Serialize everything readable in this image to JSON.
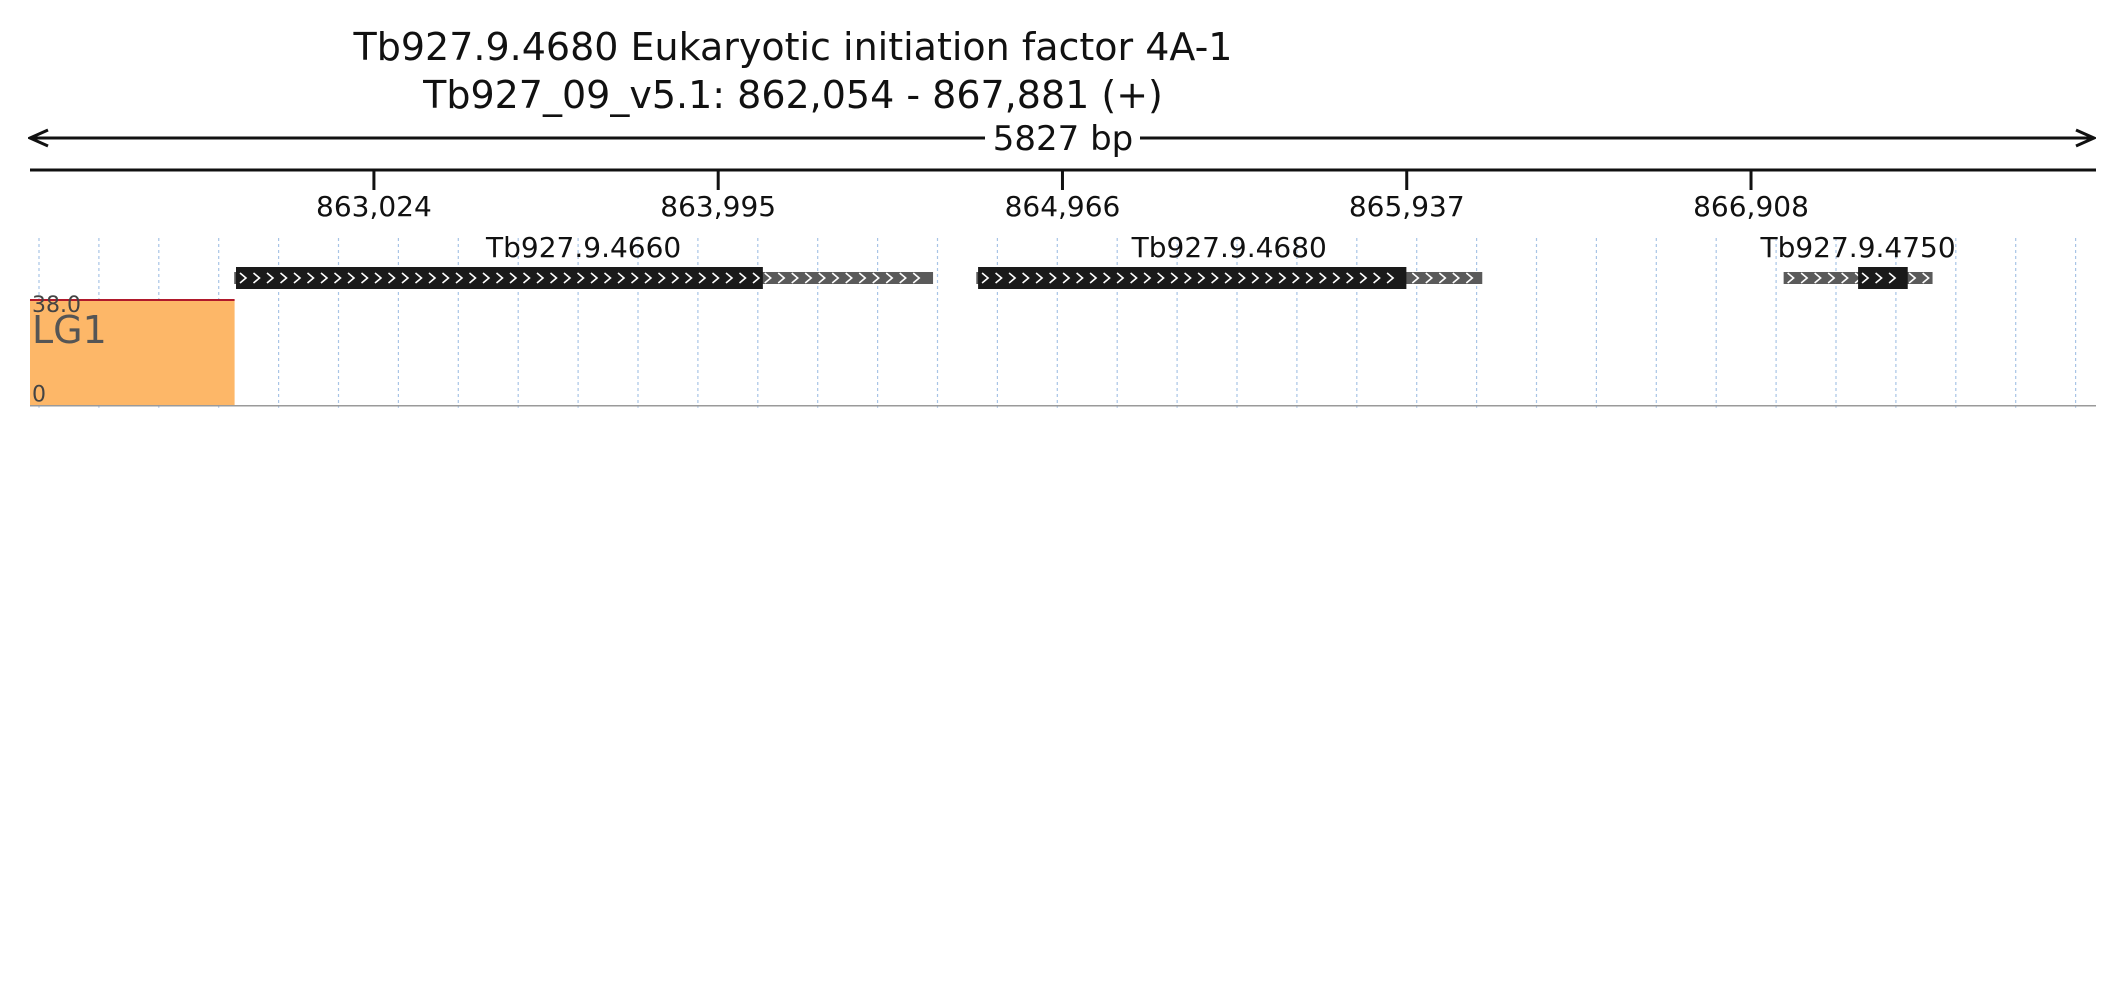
{
  "header": {
    "title": "Tb927.9.4680  Eukaryotic initiation factor 4A-1",
    "locus": "Tb927_09_v5.1: 862,054 - 867,881 (+)",
    "span_label": "5827 bp"
  },
  "region": {
    "start": 862054,
    "end": 867881
  },
  "ruler": {
    "ticks": [
      {
        "pos": 863024,
        "label": "863,024"
      },
      {
        "pos": 863995,
        "label": "863,995"
      },
      {
        "pos": 864966,
        "label": "864,966"
      },
      {
        "pos": 865937,
        "label": "865,937"
      },
      {
        "pos": 866908,
        "label": "866,908"
      }
    ]
  },
  "genes": [
    {
      "name": "Tb927.9.4660",
      "start": 862630,
      "end": 864601,
      "cds_start": 862635,
      "cds_end": 864121
    },
    {
      "name": "Tb927.9.4680",
      "start": 864723,
      "end": 866150,
      "cds_start": 864728,
      "cds_end": 865936
    },
    {
      "name": "Tb927.9.4750",
      "start": 867000,
      "end": 867420,
      "cds_start": 867210,
      "cds_end": 867350
    }
  ],
  "colors": {
    "LG1": "#fdb768",
    "G1": "#c497c9",
    "S": "#86cc86",
    "G2M": "#84b9e3",
    "GG2M": "#f59fc6",
    "Lib": "#e3d76c",
    "gene_cds": "#1a1a1a",
    "gene_utr": "#5a5a5a",
    "grid": "#a8c4e6",
    "clip": "#b0192b"
  },
  "tracks": [
    {
      "name": "LG1",
      "max_label": "38.0",
      "min_label": "0",
      "max": 38,
      "segments": [
        {
          "start": 862054,
          "end": 862631,
          "values": [
            38,
            38,
            38,
            38,
            38,
            38,
            38,
            38,
            38,
            38,
            38,
            38,
            38,
            38,
            38,
            38,
            38,
            38,
            38,
            38,
            38,
            38,
            38,
            38,
            38,
            38,
            38,
            38,
            38,
            38,
            38,
            38,
            38,
            38,
            38,
            38,
            38,
            38,
            38,
            38,
            38,
            38,
            38,
            38,
            38,
            38,
            38,
            38,
            38,
            38,
            38,
            38,
            38,
            38,
            38,
            38,
            38,
            38,
            38,
            38,
            38,
            38,
            38,
            38,
            38,
            38,
            38,
            38,
            38,
            38,
            38,
            38,
            38,
            38,
            38,
            38,
            38,
            38,
            38,
            38,
            38,
            38,
            38,
            38,
            38,
            38,
            38,
            38,
            38,
            38,
            38,
            38,
            38,
            38,
            38,
            38,
            38,
            38,
            38,
            38,
            38,
            38,
            38,
            38,
            38,
            38,
            38,
            38,
            38,
            38,
            38,
            38,
            38,
            38,
            38,
            38,
            38,
            38,
            38,
            38,
            38,
            38,
            38,
            38,
            38,
            38,
            38,
            38,
            38,
            38,
            38,
            38,
            38,
            38,
            38,
            38,
            38,
            38,
            38,
            38,
            38,
            38,
            38,
            38,
            38,
            38,
            38,
            38,
            38,
            38,
            38,
            38,
            38,
            38,
            38,
            38,
            38,
            38,
            38,
            38,
            38,
            38,
            38,
            38,
            38,
            38,
            38,
            38,
            38,
            38,
            38,
            38,
            38,
            38,
            38,
            38,
            38,
            38,
            38,
            38,
            38,
            38,
            38,
            38,
            38,
            38,
            38,
            38,
            38,
            38,
            38,
            38,
            38,
            38,
            38,
            38,
            38,
            38,
            38,
            38,
            38,
            38,
            38,
            38,
            38,
            38,
            38,
            38,
            38,
            38,
            38,
            38,
            38,
            38,
            38,
            38,
            38,
            38,
            38,
            38,
            38,
            38,
            38,
            38,
            38,
            38,
            38,
            38,
            38,
            38,
            38,
            38,
            38,
            38,
            38,
            38,
            38,
            38,
            38,
            38,
            38,
            38,
            38,
            38,
            38,
            38,
            38,
            38,
            38,
            38,
            38,
            38,
            38,
            38,
            38,
            38,
            38,
            38,
            38,
            38,
            38,
            38,
            38,
            38,
            38,
            38,
            38,
            38,
            38,
            38,
            38,
            38,
            38,
            38,
            38,
            38,
            38,
            38,
            38,
            38,
            38,
            38,
            38,
            38,
            38,
            38,
            38,
            38,
            38,
            38,
            38,
            38,
            38,
            38,
            38,
            38,
            38,
            38,
            38,
            38,
            38,
            38,
            38,
            38,
            38,
            38,
            38,
            38,
            38,
            38,
            38,
            38,
            38,
            38,
            38,
            38,
            38,
            38,
            38,
            38,
            38,
            38,
            38,
            38,
            38,
            38,
            38,
            38,
            38,
            38,
            38,
            38,
            38,
            38,
            38,
            38,
            38,
            38,
            38,
            38,
            38,
            38,
            38,
            38,
            38,
            38,
            38,
            38,
            38,
            38,
            38,
            38,
            38,
            38,
            38,
            38,
            38,
            38,
            38,
            38,
            38,
            38,
            38,
            38,
            38,
            38,
            38,
            38,
            38,
            38,
            38,
            38,
            38,
            38,
            38,
            38,
            38,
            38,
            38,
            38,
            38,
            38,
            38,
            38,
            38,
            38,
            38,
            38,
            38,
            38,
            38,
            38,
            38,
            38,
            38,
            38,
            38,
            38,
            38,
            38,
            38,
            38,
            38,
            38,
            38,
            38,
            38,
            38,
            38,
            38,
            38,
            38,
            38,
            38,
            38,
            38,
            38,
            38,
            38,
            38,
            38,
            38,
            38,
            38,
            38,
            38,
            38,
            38,
            38,
            38,
            38,
            38,
            38,
            38,
            38,
            38,
            38,
            38,
            38,
            38,
            38,
            38,
            38,
            38,
            38,
            38,
            38,
            38,
            38,
            38,
            38,
            38,
            38,
            38,
            38,
            38,
            38,
            38,
            38,
            38,
            38,
            38,
            38,
            38,
            38,
            38,
            38,
            38,
            38,
            38,
            38,
            38,
            38,
            38,
            38,
            38,
            38,
            38,
            38,
            38,
            38,
            38,
            38,
            38,
            38,
            38,
            38,
            38,
            38,
            38,
            38,
            38,
            38,
            38,
            38,
            38,
            38,
            38,
            38,
            38,
            38,
            38,
            38,
            38,
            38,
            38,
            38,
            38,
            38,
            38,
            38,
            38,
            38,
            38,
            38,
            38,
            38,
            38,
            38,
            38,
            38,
            38,
            38,
            38,
            38,
            38,
            38,
            38,
            38,
            38,
            38,
            38,
            38,
            38,
            38,
            38,
            38,
            38,
            38,
            38,
            38,
            38,
            38,
            38,
            38,
            38,
            38,
            38,
            38,
            38,
            38,
            38,
            38,
            38,
            38,
            38,
            38,
            38,
            38,
            38,
            38,
            38,
            38,
            38,
            38,
            38,
            38,
            38,
            38,
            38,
            38,
            38,
            38,
            38,
            38,
            38,
            38,
            38,
            38,
            38,
            38,
            38,
            38,
            38,
            38,
            38,
            38,
            38,
            38,
            38,
            38,
            38,
            38,
            38,
            38,
            38,
            38,
            38,
            38,
            38,
            38,
            38,
            38,
            38,
            38,
            38,
            38,
            38,
            38,
            38,
            38,
            38,
            38,
            38,
            38,
            38,
            38,
            38,
            38,
            38,
            38,
            38,
            38,
            38,
            38,
            38
          ]
        }
      ]
    }
  ]
}
